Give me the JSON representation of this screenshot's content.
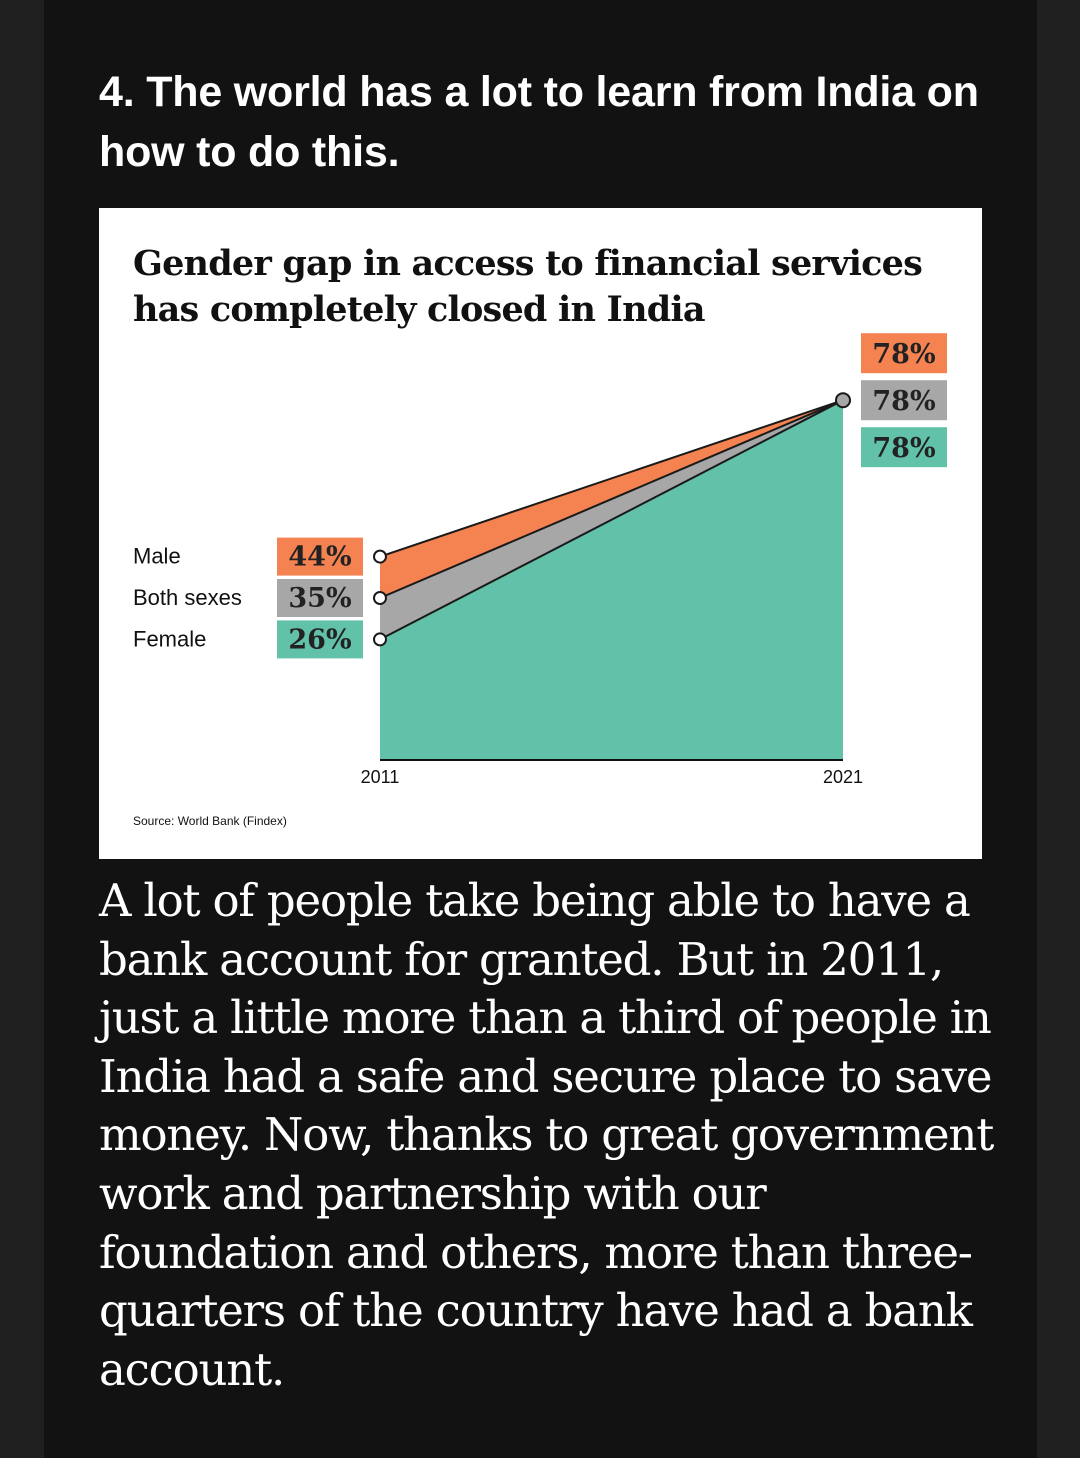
{
  "heading": "4. The world has a lot to learn from India on how to do this.",
  "body_text": "A lot of people take being able to have a bank account for granted. But in 2011, just a little more than a third of people in India had a safe and secure place to save money. Now, thanks to great government work and partnership with our foundation and others, more than three-quarters of the country have had a bank account.",
  "colors": {
    "male": "#f58351",
    "both": "#a7a7a7",
    "female": "#62c2a9"
  },
  "chart_data": {
    "type": "area",
    "title_lines": [
      "Gender gap in access to financial services",
      "has completely closed in India"
    ],
    "source": "Source: World Bank (Findex)",
    "x": [
      "2011",
      "2021"
    ],
    "series": [
      {
        "name": "Male",
        "key": "male",
        "values": [
          44,
          78
        ],
        "labels": [
          "44%",
          "78%"
        ]
      },
      {
        "name": "Both sexes",
        "key": "both",
        "values": [
          35,
          78
        ],
        "labels": [
          "35%",
          "78%"
        ]
      },
      {
        "name": "Female",
        "key": "female",
        "values": [
          26,
          78
        ],
        "labels": [
          "26%",
          "78%"
        ]
      }
    ],
    "ylim": [
      0,
      78
    ],
    "grid": false,
    "legend": "left"
  }
}
